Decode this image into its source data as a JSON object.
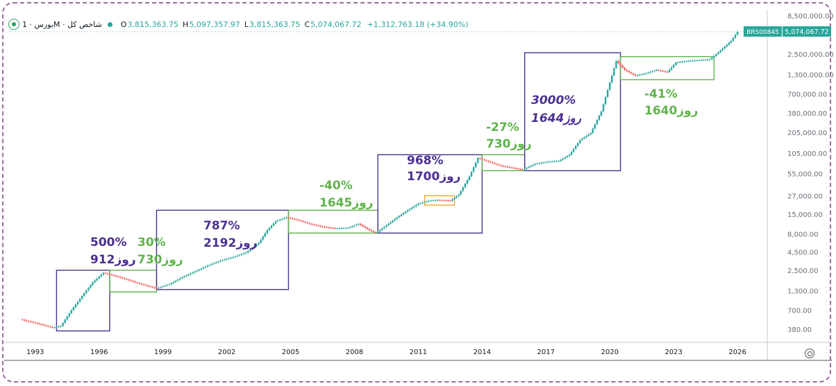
{
  "header": {
    "symbol_label": "بورس · 1M · شاخص کل",
    "open_label": "O",
    "open": "3,815,363.75",
    "high_label": "H",
    "high": "5,097,357.97",
    "low_label": "L",
    "low": "3,815,363.75",
    "close_label": "C",
    "close": "5,074,067.72",
    "change": "+1,312,763.18 (+34.90%)"
  },
  "price_tag": {
    "symbol": "BRS00845",
    "value": "5,074,067.72"
  },
  "colors": {
    "up": "#26a69a",
    "down": "#ef5350",
    "purple_box": "#4b2f8f",
    "green_box": "#5fb34a",
    "orange_box": "#f5a623"
  },
  "chart_data": {
    "type": "candlestick",
    "yscale": "log",
    "ylim": [
      250,
      9000000
    ],
    "xlim": [
      1991.8,
      2027.4
    ],
    "y_ticks": [
      380,
      700,
      1300,
      2500,
      4500,
      8000,
      15000,
      27000,
      55000,
      105000,
      205000,
      380000,
      700000,
      1300000,
      2500000,
      8500000
    ],
    "y_tick_labels": [
      "380.00",
      "700.00",
      "1,300.00",
      "2,500.00",
      "4,500.00",
      "8,000.00",
      "15,000.00",
      "27,000.00",
      "55,000.00",
      "105,000.00",
      "205,000.00",
      "380,000.00",
      "700,000.00",
      "1,300,000.00",
      "2,500,000.00",
      "8,500,000.00"
    ],
    "x_ticks": [
      1993,
      1996,
      1999,
      2002,
      2005,
      2008,
      2011,
      2014,
      2017,
      2020,
      2023,
      2026
    ],
    "x_tick_labels": [
      "1993",
      "1996",
      "1999",
      "2002",
      "2005",
      "2008",
      "2011",
      "2014",
      "2017",
      "2020",
      "2023",
      "2026"
    ],
    "series": [
      {
        "points": [
          [
            1992.4,
            520
          ],
          [
            1992.9,
            480
          ],
          [
            1993.4,
            440
          ],
          [
            1993.9,
            400
          ],
          [
            1994.3,
            420
          ],
          [
            1994.8,
            700
          ],
          [
            1995.3,
            1100
          ],
          [
            1995.8,
            1700
          ],
          [
            1996.3,
            2300
          ],
          [
            1996.8,
            2100
          ],
          [
            1997.3,
            1900
          ],
          [
            1997.8,
            1700
          ],
          [
            1998.4,
            1500
          ],
          [
            1998.8,
            1400
          ],
          [
            1999.4,
            1600
          ],
          [
            2000.0,
            2000
          ],
          [
            2000.6,
            2400
          ],
          [
            2001.2,
            2900
          ],
          [
            2001.8,
            3400
          ],
          [
            2002.4,
            3800
          ],
          [
            2003.0,
            4400
          ],
          [
            2003.6,
            6000
          ],
          [
            2004.0,
            9000
          ],
          [
            2004.4,
            12000
          ],
          [
            2004.9,
            13500
          ],
          [
            2005.4,
            12500
          ],
          [
            2006.0,
            11000
          ],
          [
            2006.6,
            10000
          ],
          [
            2007.2,
            9500
          ],
          [
            2007.8,
            9700
          ],
          [
            2008.3,
            11000
          ],
          [
            2008.8,
            9000
          ],
          [
            2009.1,
            8200
          ],
          [
            2009.6,
            10500
          ],
          [
            2010.1,
            13500
          ],
          [
            2010.6,
            17000
          ],
          [
            2011.1,
            21000
          ],
          [
            2011.6,
            23000
          ],
          [
            2012.0,
            23500
          ],
          [
            2012.6,
            23000
          ],
          [
            2013.0,
            28000
          ],
          [
            2013.5,
            50000
          ],
          [
            2013.9,
            90000
          ],
          [
            2014.4,
            80000
          ],
          [
            2015.0,
            70000
          ],
          [
            2015.6,
            65000
          ],
          [
            2016.0,
            62000
          ],
          [
            2016.6,
            75000
          ],
          [
            2017.2,
            80000
          ],
          [
            2017.7,
            82000
          ],
          [
            2018.2,
            100000
          ],
          [
            2018.7,
            160000
          ],
          [
            2019.2,
            200000
          ],
          [
            2019.7,
            400000
          ],
          [
            2020.1,
            1000000
          ],
          [
            2020.4,
            2000000
          ],
          [
            2020.8,
            1500000
          ],
          [
            2021.3,
            1250000
          ],
          [
            2021.8,
            1350000
          ],
          [
            2022.3,
            1500000
          ],
          [
            2022.8,
            1400000
          ],
          [
            2023.2,
            1900000
          ],
          [
            2023.8,
            2000000
          ],
          [
            2024.3,
            2050000
          ],
          [
            2024.8,
            2100000
          ],
          [
            2025.3,
            2800000
          ],
          [
            2025.8,
            3800000
          ],
          [
            2026.1,
            5074067.72
          ]
        ]
      }
    ],
    "boxes": [
      {
        "style": "purple",
        "from": 1994.0,
        "to": 1996.5,
        "low": 360,
        "high": 2500,
        "pct": "500%",
        "days": "912روز"
      },
      {
        "style": "green",
        "from": 1996.5,
        "to": 1998.7,
        "low": 1250,
        "high": 2500,
        "pct": "30%",
        "days": "730روز"
      },
      {
        "style": "purple",
        "from": 1998.7,
        "to": 2004.9,
        "low": 1350,
        "high": 17000,
        "pct": "787%",
        "days": "2192روز"
      },
      {
        "style": "green",
        "from": 2004.9,
        "to": 2009.1,
        "low": 8200,
        "high": 17000,
        "pct": "-40%",
        "days": "1645روز"
      },
      {
        "style": "purple",
        "from": 2009.1,
        "to": 2014.0,
        "low": 8200,
        "high": 100000,
        "pct": "968%",
        "days": "1700روز"
      },
      {
        "style": "green",
        "from": 2014.0,
        "to": 2016.0,
        "low": 60000,
        "high": 100000,
        "pct": "-27%",
        "days": "730روز"
      },
      {
        "style": "purple",
        "from": 2016.0,
        "to": 2020.5,
        "low": 60000,
        "high": 2600000,
        "pct": "3000%",
        "days": "1644روز"
      },
      {
        "style": "green",
        "from": 2020.5,
        "to": 2024.9,
        "low": 1100000,
        "high": 2300000,
        "pct": "-41%",
        "days": "1640روز"
      },
      {
        "style": "orange",
        "from": 2011.3,
        "to": 2012.7,
        "low": 20000,
        "high": 27000,
        "pct": "",
        "days": ""
      }
    ]
  }
}
